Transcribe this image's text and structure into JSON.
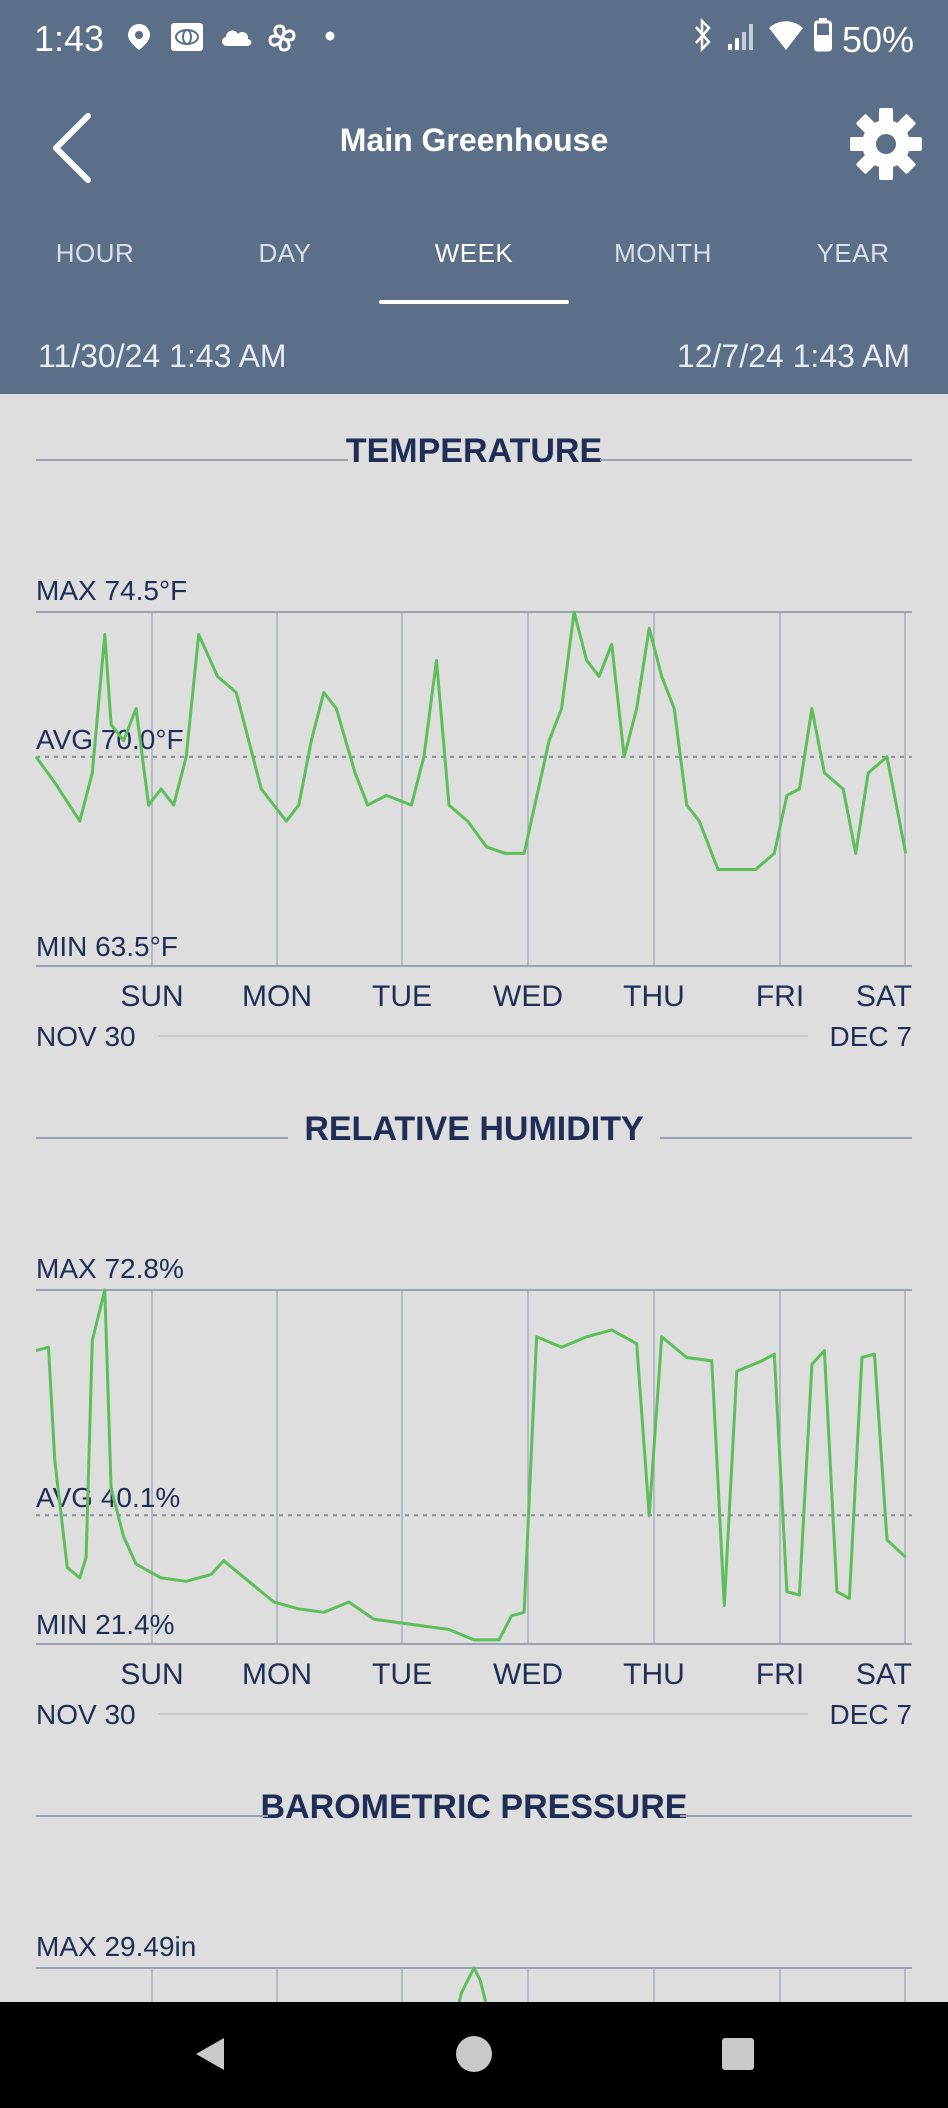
{
  "status_bar": {
    "time": "1:43",
    "battery": "50%",
    "left_icons": [
      "location-icon",
      "toyota-icon",
      "cloud-icon",
      "fan-icon",
      "dot-icon"
    ],
    "right_icons": [
      "bluetooth-icon",
      "signal-icon",
      "wifi-icon",
      "battery-icon"
    ]
  },
  "header": {
    "title": "Main Greenhouse",
    "tabs": [
      "HOUR",
      "DAY",
      "WEEK",
      "MONTH",
      "YEAR"
    ],
    "active_tab": "WEEK",
    "start_date": "11/30/24 1:43 AM",
    "end_date": "12/7/24 1:43 AM"
  },
  "colors": {
    "header_bg": "#5b6f88",
    "content_bg": "#dedede",
    "title_text": "#1f2d57",
    "series_line": "#5cbf5a",
    "grid": "#9aa3b2"
  },
  "days": [
    "SUN",
    "MON",
    "TUE",
    "WED",
    "THU",
    "FRI",
    "SAT"
  ],
  "range_start": "NOV 30",
  "range_end": "DEC 7",
  "chart_data": [
    {
      "type": "line",
      "title": "TEMPERATURE",
      "max_label": "MAX 74.5°F",
      "avg_label": "AVG 70.0°F",
      "min_label": "MIN 63.5°F",
      "ylim": [
        63.5,
        74.5
      ],
      "avg": 70.0,
      "x": [
        0.0,
        0.15,
        0.35,
        0.45,
        0.55,
        0.6,
        0.7,
        0.8,
        0.9,
        1.0,
        1.1,
        1.2,
        1.3,
        1.45,
        1.6,
        1.8,
        2.0,
        2.1,
        2.2,
        2.3,
        2.4,
        2.55,
        2.65,
        2.8,
        3.0,
        3.1,
        3.2,
        3.3,
        3.45,
        3.6,
        3.75,
        3.9,
        4.1,
        4.2,
        4.3,
        4.4,
        4.5,
        4.6,
        4.7,
        4.8,
        4.9,
        5.0,
        5.1,
        5.2,
        5.3,
        5.45,
        5.6,
        5.75,
        5.9,
        6.0,
        6.1,
        6.2,
        6.3,
        6.45,
        6.55,
        6.65,
        6.8,
        6.95
      ],
      "y": [
        70.0,
        69.2,
        68.0,
        69.5,
        73.8,
        71.0,
        70.5,
        71.5,
        68.5,
        69.0,
        68.5,
        70.0,
        73.8,
        72.5,
        72.0,
        69.0,
        68.0,
        68.5,
        70.5,
        72.0,
        71.5,
        69.5,
        68.5,
        68.8,
        68.5,
        70.0,
        73.0,
        68.5,
        68.0,
        67.2,
        67.0,
        67.0,
        70.5,
        71.5,
        74.5,
        73.0,
        72.5,
        73.5,
        70.0,
        71.5,
        74.0,
        72.5,
        71.5,
        68.5,
        68.0,
        66.5,
        66.5,
        66.5,
        67.0,
        68.8,
        69.0,
        71.5,
        69.5,
        69.0,
        67.0,
        69.5,
        70.0,
        67.0
      ]
    },
    {
      "type": "line",
      "title": "RELATIVE HUMIDITY",
      "max_label": "MAX 72.8%",
      "avg_label": "AVG 40.1%",
      "min_label": "MIN 21.4%",
      "ylim": [
        21.4,
        72.8
      ],
      "avg": 40.1,
      "x": [
        0.0,
        0.1,
        0.15,
        0.25,
        0.35,
        0.4,
        0.45,
        0.55,
        0.6,
        0.7,
        0.8,
        1.0,
        1.2,
        1.4,
        1.5,
        1.7,
        1.9,
        2.1,
        2.3,
        2.5,
        2.7,
        2.9,
        3.1,
        3.3,
        3.5,
        3.7,
        3.8,
        3.9,
        4.0,
        4.2,
        4.4,
        4.6,
        4.8,
        4.9,
        5.0,
        5.2,
        5.4,
        5.5,
        5.6,
        5.8,
        5.9,
        6.0,
        6.1,
        6.2,
        6.3,
        6.4,
        6.5,
        6.6,
        6.7,
        6.8,
        6.95
      ],
      "y": [
        64.0,
        64.5,
        48.0,
        32.5,
        31.0,
        34.0,
        65.5,
        72.8,
        44.0,
        37.0,
        33.0,
        31.0,
        30.5,
        31.5,
        33.5,
        30.5,
        27.5,
        26.5,
        26.0,
        27.5,
        25.0,
        24.5,
        24.0,
        23.5,
        22.0,
        22.0,
        25.5,
        26.0,
        66.0,
        64.5,
        66.0,
        67.0,
        65.0,
        40.0,
        66.0,
        63.0,
        62.5,
        27.0,
        61.0,
        62.5,
        63.5,
        29.0,
        28.5,
        62.0,
        64.0,
        29.0,
        28.0,
        63.0,
        63.5,
        36.5,
        34.0
      ]
    },
    {
      "type": "line",
      "title": "BAROMETRIC PRESSURE",
      "max_label": "MAX 29.49in",
      "x": [
        3.35,
        3.4,
        3.5,
        3.55,
        3.6,
        3.65
      ],
      "y": [
        29.45,
        29.47,
        29.49,
        29.48,
        29.46,
        29.44
      ]
    }
  ]
}
